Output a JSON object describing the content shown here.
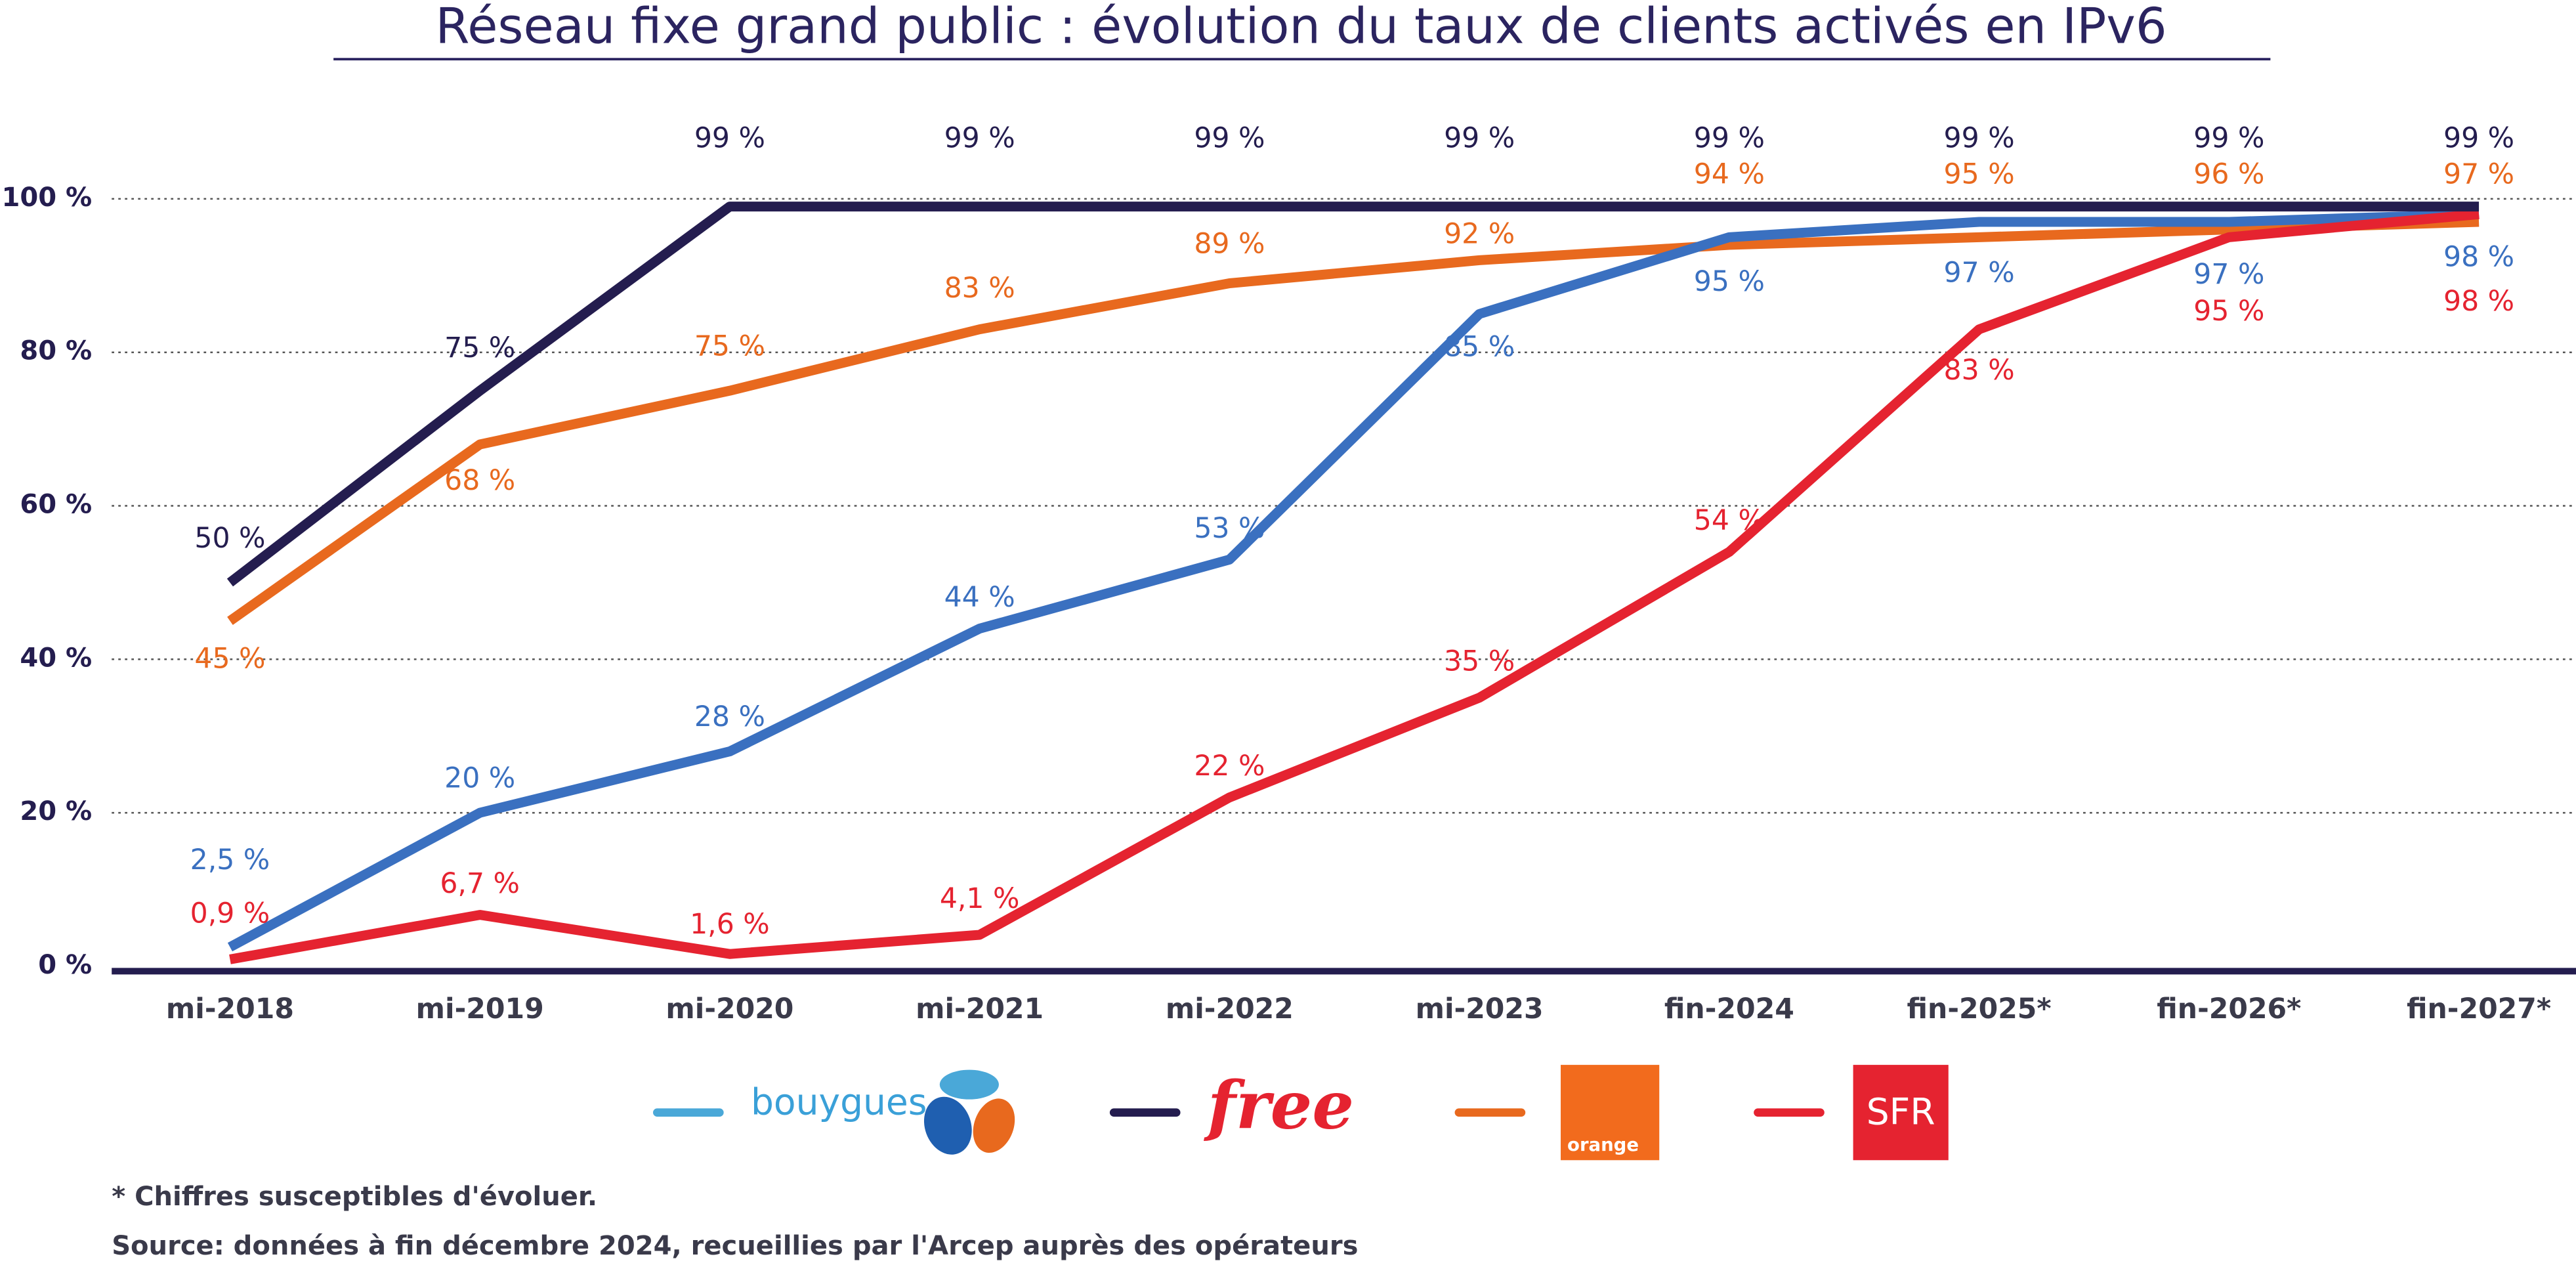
{
  "chart_data": {
    "type": "line",
    "title": "Réseau fixe grand public : évolution du taux de clients activés en IPv6",
    "categories": [
      "mi-2018",
      "mi-2019",
      "mi-2020",
      "mi-2021",
      "mi-2022",
      "mi-2023",
      "fin-2024",
      "fin-2025*",
      "fin-2026*",
      "fin-2027*"
    ],
    "ylim": [
      0,
      100
    ],
    "yticks": [
      {
        "value": 0,
        "label": "0 %"
      },
      {
        "value": 20,
        "label": "20 %"
      },
      {
        "value": 40,
        "label": "40 %"
      },
      {
        "value": 60,
        "label": "60 %"
      },
      {
        "value": 80,
        "label": "80 %"
      },
      {
        "value": 100,
        "label": "100 %"
      }
    ],
    "grid": true,
    "series": [
      {
        "name": "bouygues",
        "color": "#3a70c0",
        "values": [
          2.5,
          20,
          28,
          44,
          53,
          85,
          95,
          97,
          97,
          98
        ],
        "value_labels": [
          "2,5 %",
          "20 %",
          "28 %",
          "44 %",
          "53 %",
          "85 %",
          "95 %",
          "97 %",
          "97 %",
          "98 %"
        ]
      },
      {
        "name": "free",
        "color": "#241d4f",
        "values": [
          50,
          75,
          99,
          99,
          99,
          99,
          99,
          99,
          99,
          99
        ],
        "value_labels": [
          "50 %",
          "75 %",
          "99 %",
          "99 %",
          "99 %",
          "99 %",
          "99 %",
          "99 %",
          "99 %",
          "99 %"
        ]
      },
      {
        "name": "orange",
        "color": "#e8691e",
        "values": [
          45,
          68,
          75,
          83,
          89,
          92,
          94,
          95,
          96,
          97
        ],
        "value_labels": [
          "45 %",
          "68 %",
          "75 %",
          "83 %",
          "89 %",
          "92 %",
          "94 %",
          "95 %",
          "96 %",
          "97 %"
        ]
      },
      {
        "name": "SFR",
        "color": "#e52330",
        "values": [
          0.9,
          6.7,
          1.6,
          4.1,
          22,
          35,
          54,
          83,
          95,
          98
        ],
        "value_labels": [
          "0,9 %",
          "6,7 %",
          "1,6 %",
          "4,1 %",
          "22 %",
          "35 %",
          "54 %",
          "83 %",
          "95 %",
          "98 %"
        ]
      }
    ],
    "footnote": "* Chiffres susceptibles d'évoluer.",
    "source": "Source: données à fin décembre 2024, recueillies par l'Arcep auprès des opérateurs"
  }
}
